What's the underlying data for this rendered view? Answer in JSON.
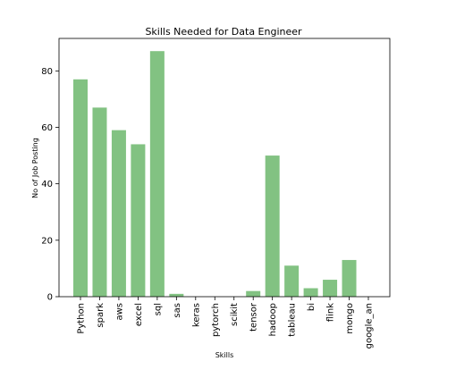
{
  "chart_data": {
    "type": "bar",
    "title": "Skills Needed for Data Engineer",
    "xlabel": "Skills",
    "ylabel": "No of Job Posting",
    "ylim": [
      0,
      91.5
    ],
    "yticks": [
      0,
      20,
      40,
      60,
      80
    ],
    "grid": false,
    "bar_color": "#82c282",
    "categories": [
      "Python",
      "spark",
      "aws",
      "excel",
      "sql",
      "sas",
      "keras",
      "pytorch",
      "scikit",
      "tensor",
      "hadoop",
      "tableau",
      "bi",
      "flink",
      "mongo",
      "google_an"
    ],
    "values": [
      77,
      67,
      59,
      54,
      87,
      1,
      0,
      0,
      0,
      2,
      50,
      11,
      3,
      6,
      13,
      0
    ]
  }
}
